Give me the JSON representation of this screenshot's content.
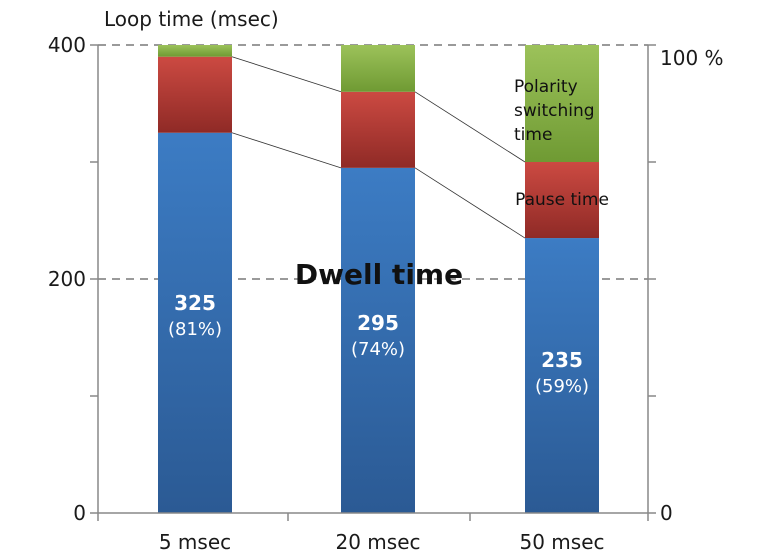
{
  "chart_data": {
    "type": "bar",
    "stacked": true,
    "categories": [
      "5 msec",
      "20 msec",
      "50 msec"
    ],
    "series": [
      {
        "name": "Dwell time",
        "values": [
          325,
          295,
          235
        ],
        "color": "#3a78c0"
      },
      {
        "name": "Pause time",
        "values": [
          65,
          65,
          65
        ],
        "color": "#c0403b"
      },
      {
        "name": "Polarity switching time",
        "values": [
          10,
          40,
          100
        ],
        "color": "#8ab34a"
      }
    ],
    "data_labels": [
      {
        "value": "325",
        "percent": "(81%)"
      },
      {
        "value": "295",
        "percent": "(74%)"
      },
      {
        "value": "235",
        "percent": "(59%)"
      }
    ],
    "ylabel": "Loop time (msec)",
    "ylim": [
      0,
      400
    ],
    "yticks": [
      "0",
      "200",
      "400"
    ],
    "y2ticks": [
      "0",
      "100 %"
    ],
    "annotations": {
      "dwell": "Dwell time",
      "pause": "Pause time",
      "polarity": [
        "Polarity",
        "switching",
        "time"
      ]
    },
    "gridlines": [
      200,
      400
    ],
    "connector_lines": true
  }
}
